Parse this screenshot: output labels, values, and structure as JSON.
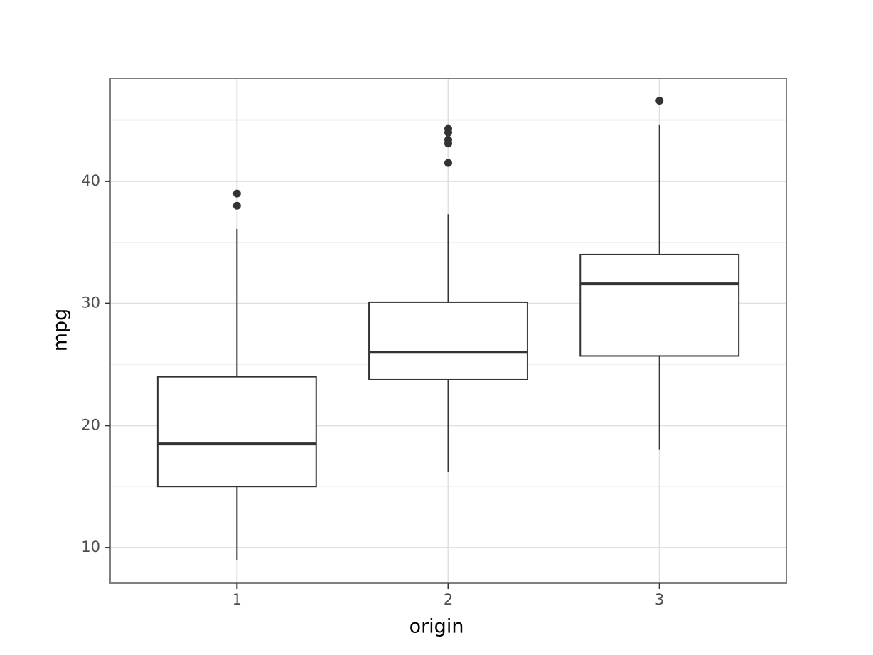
{
  "chart_data": {
    "type": "box",
    "x_label": "origin",
    "y_label": "mpg",
    "categories": [
      "1",
      "2",
      "3"
    ],
    "boxes": [
      {
        "whislo": 9.0,
        "q1": 15.0,
        "median": 18.5,
        "q3": 24.0,
        "whishi": 36.1,
        "fliers": [
          39.0,
          38.0
        ]
      },
      {
        "whislo": 16.2,
        "q1": 23.75,
        "median": 26.0,
        "q3": 30.1,
        "whishi": 37.3,
        "fliers": [
          44.3,
          44.0,
          43.4,
          43.1,
          41.5
        ]
      },
      {
        "whislo": 18.0,
        "q1": 25.7,
        "median": 31.6,
        "q3": 34.0,
        "whishi": 44.6,
        "fliers": [
          46.6
        ]
      }
    ],
    "color": "#333333",
    "ylim": [
      7.09,
      48.44
    ],
    "yticks": [
      10,
      20,
      30,
      40
    ],
    "yminor": [
      15,
      25,
      35,
      45
    ],
    "grid": true
  }
}
